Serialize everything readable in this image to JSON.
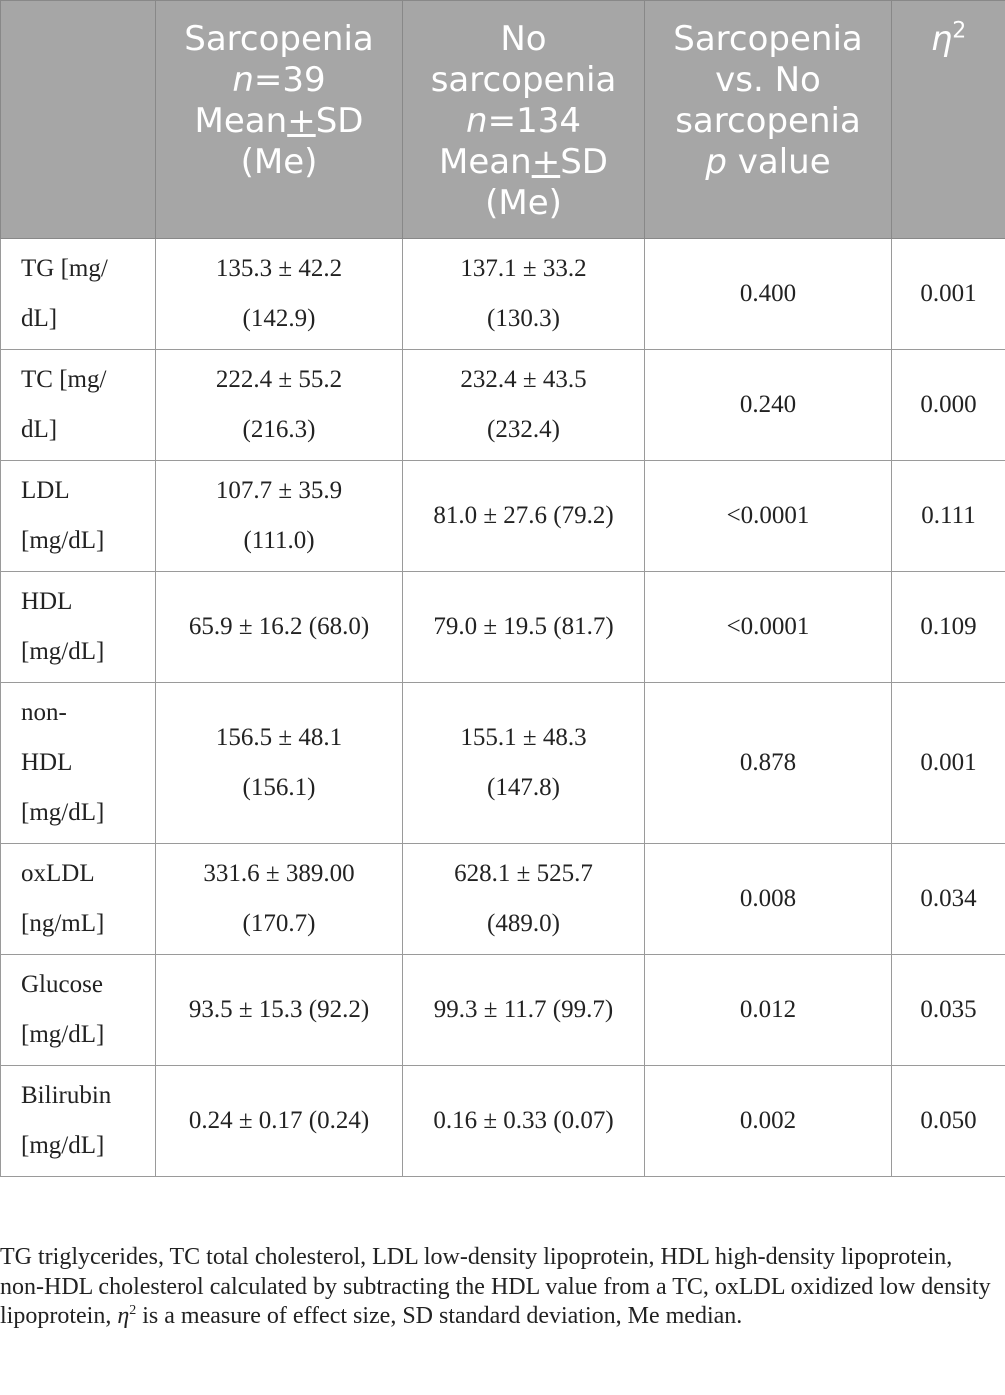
{
  "table": {
    "headers": {
      "col0": "",
      "col1": {
        "line1": "Sarcopenia",
        "n": "n",
        "n_val": "=39",
        "mean_a": "Mean",
        "pm": "+",
        "mean_b": "SD",
        "median": "(Me)"
      },
      "col2": {
        "line1": "No",
        "line2": "sarcopenia",
        "n": "n",
        "n_val": "=134",
        "mean_a": "Mean",
        "pm": "+",
        "mean_b": "SD",
        "median": "(Me)"
      },
      "col3": {
        "line1": "Sarcopenia",
        "line2": "vs. No",
        "line3": "sarcopenia",
        "p": "p",
        "p_rest": " value"
      },
      "col4": {
        "symbol": "η",
        "exp": "2"
      }
    },
    "rows": [
      {
        "label": [
          "TG [mg/",
          "dL]"
        ],
        "sarcopenia": [
          "135.3 ± 42.2",
          "(142.9)"
        ],
        "no_sarcopenia": [
          "137.1 ± 33.2",
          "(130.3)"
        ],
        "p": "0.400",
        "eta": "0.001"
      },
      {
        "label": [
          "TC [mg/",
          "dL]"
        ],
        "sarcopenia": [
          "222.4 ± 55.2",
          "(216.3)"
        ],
        "no_sarcopenia": [
          "232.4 ± 43.5",
          "(232.4)"
        ],
        "p": "0.240",
        "eta": "0.000"
      },
      {
        "label": [
          "LDL",
          "[mg/dL]"
        ],
        "sarcopenia": [
          "107.7 ± 35.9",
          "(111.0)"
        ],
        "no_sarcopenia": [
          "81.0 ± 27.6 (79.2)"
        ],
        "p": "<0.0001",
        "eta": "0.111"
      },
      {
        "label": [
          "HDL",
          "[mg/dL]"
        ],
        "sarcopenia": [
          "65.9 ± 16.2 (68.0)"
        ],
        "no_sarcopenia": [
          "79.0 ± 19.5 (81.7)"
        ],
        "p": "<0.0001",
        "eta": "0.109"
      },
      {
        "label": [
          "non-",
          "HDL",
          "[mg/dL]"
        ],
        "sarcopenia": [
          "156.5 ± 48.1",
          "(156.1)"
        ],
        "no_sarcopenia": [
          "155.1 ± 48.3",
          "(147.8)"
        ],
        "p": "0.878",
        "eta": "0.001"
      },
      {
        "label": [
          "oxLDL",
          "[ng/mL]"
        ],
        "sarcopenia": [
          "331.6 ± 389.00",
          "(170.7)"
        ],
        "no_sarcopenia": [
          "628.1 ± 525.7",
          "(489.0)"
        ],
        "p": "0.008",
        "eta": "0.034"
      },
      {
        "label": [
          "Glucose",
          "[mg/dL]"
        ],
        "sarcopenia": [
          "93.5 ± 15.3 (92.2)"
        ],
        "no_sarcopenia": [
          "99.3 ± 11.7 (99.7)"
        ],
        "p": "0.012",
        "eta": "0.035"
      },
      {
        "label": [
          "Bilirubin",
          "[mg/dL]"
        ],
        "sarcopenia": [
          "0.24 ± 0.17 (0.24)"
        ],
        "no_sarcopenia": [
          "0.16 ± 0.33 (0.07)"
        ],
        "p": "0.002",
        "eta": "0.050"
      }
    ]
  },
  "footnote": {
    "part1": "TG triglycerides, TC total cholesterol, LDL low-density lipoprotein, HDL high-density lipoprotein, non-HDL cholesterol calculated by subtracting the HDL value from a TC, oxLDL oxidized low density lipoprotein, ",
    "eta": "η",
    "exp": "2",
    "part2": " is a measure of effect size, SD standard deviation, Me median."
  }
}
